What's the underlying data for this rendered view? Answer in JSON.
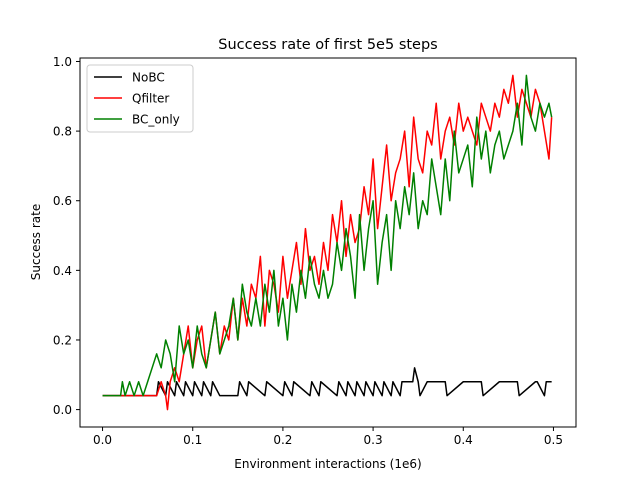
{
  "chart_data": {
    "type": "line",
    "title": "Success rate of first 5e5 steps",
    "xlabel": "Environment interactions (1e6)",
    "ylabel": "Success rate",
    "xlim": [
      -0.025,
      0.525
    ],
    "ylim": [
      -0.05,
      1.01
    ],
    "xticks": [
      0.0,
      0.1,
      0.2,
      0.3,
      0.4,
      0.5
    ],
    "xtick_labels": [
      "0.0",
      "0.1",
      "0.2",
      "0.3",
      "0.4",
      "0.5"
    ],
    "yticks": [
      0.0,
      0.2,
      0.4,
      0.6,
      0.8,
      1.0
    ],
    "ytick_labels": [
      "0.0",
      "0.2",
      "0.4",
      "0.6",
      "0.8",
      "1.0"
    ],
    "grid": false,
    "legend": "upper left",
    "series": [
      {
        "name": "NoBC",
        "color": "#000000",
        "x": [
          0.0,
          0.06,
          0.062,
          0.07,
          0.072,
          0.08,
          0.082,
          0.09,
          0.092,
          0.1,
          0.102,
          0.11,
          0.112,
          0.12,
          0.122,
          0.13,
          0.132,
          0.15,
          0.152,
          0.16,
          0.162,
          0.18,
          0.182,
          0.2,
          0.202,
          0.21,
          0.212,
          0.23,
          0.232,
          0.24,
          0.242,
          0.26,
          0.262,
          0.27,
          0.272,
          0.28,
          0.282,
          0.29,
          0.292,
          0.3,
          0.302,
          0.31,
          0.312,
          0.32,
          0.322,
          0.33,
          0.332,
          0.344,
          0.346,
          0.35,
          0.352,
          0.36,
          0.362,
          0.38,
          0.382,
          0.4,
          0.402,
          0.42,
          0.422,
          0.44,
          0.442,
          0.46,
          0.462,
          0.48,
          0.482,
          0.49,
          0.492,
          0.498
        ],
        "y": [
          0.04,
          0.04,
          0.08,
          0.04,
          0.08,
          0.04,
          0.08,
          0.04,
          0.08,
          0.04,
          0.08,
          0.04,
          0.08,
          0.04,
          0.08,
          0.04,
          0.04,
          0.04,
          0.08,
          0.04,
          0.08,
          0.04,
          0.08,
          0.04,
          0.08,
          0.04,
          0.08,
          0.04,
          0.08,
          0.04,
          0.08,
          0.04,
          0.08,
          0.04,
          0.08,
          0.04,
          0.08,
          0.04,
          0.08,
          0.04,
          0.08,
          0.04,
          0.08,
          0.04,
          0.08,
          0.04,
          0.08,
          0.08,
          0.12,
          0.08,
          0.04,
          0.08,
          0.08,
          0.08,
          0.04,
          0.08,
          0.08,
          0.08,
          0.04,
          0.08,
          0.08,
          0.08,
          0.04,
          0.08,
          0.08,
          0.04,
          0.08,
          0.08
        ]
      },
      {
        "name": "Qfilter",
        "color": "#ff0000",
        "x": [
          0.0,
          0.05,
          0.055,
          0.06,
          0.065,
          0.07,
          0.072,
          0.075,
          0.08,
          0.085,
          0.09,
          0.095,
          0.1,
          0.105,
          0.11,
          0.115,
          0.12,
          0.125,
          0.13,
          0.135,
          0.14,
          0.145,
          0.15,
          0.155,
          0.16,
          0.165,
          0.17,
          0.175,
          0.18,
          0.185,
          0.19,
          0.195,
          0.2,
          0.205,
          0.21,
          0.215,
          0.22,
          0.225,
          0.23,
          0.235,
          0.24,
          0.245,
          0.25,
          0.255,
          0.26,
          0.265,
          0.27,
          0.275,
          0.28,
          0.285,
          0.29,
          0.295,
          0.3,
          0.305,
          0.31,
          0.315,
          0.32,
          0.325,
          0.33,
          0.335,
          0.34,
          0.345,
          0.35,
          0.355,
          0.36,
          0.365,
          0.37,
          0.375,
          0.38,
          0.385,
          0.39,
          0.395,
          0.4,
          0.405,
          0.41,
          0.415,
          0.42,
          0.425,
          0.43,
          0.435,
          0.44,
          0.445,
          0.45,
          0.455,
          0.46,
          0.465,
          0.47,
          0.475,
          0.48,
          0.485,
          0.49,
          0.495,
          0.498
        ],
        "y": [
          0.04,
          0.04,
          0.04,
          0.04,
          0.08,
          0.04,
          0.0,
          0.08,
          0.12,
          0.08,
          0.16,
          0.24,
          0.12,
          0.2,
          0.24,
          0.12,
          0.2,
          0.28,
          0.16,
          0.24,
          0.2,
          0.32,
          0.2,
          0.32,
          0.24,
          0.36,
          0.32,
          0.44,
          0.24,
          0.4,
          0.36,
          0.28,
          0.44,
          0.32,
          0.4,
          0.48,
          0.36,
          0.52,
          0.4,
          0.44,
          0.36,
          0.48,
          0.4,
          0.56,
          0.48,
          0.6,
          0.44,
          0.56,
          0.48,
          0.52,
          0.64,
          0.56,
          0.72,
          0.52,
          0.64,
          0.76,
          0.6,
          0.68,
          0.72,
          0.8,
          0.64,
          0.84,
          0.72,
          0.68,
          0.8,
          0.76,
          0.88,
          0.72,
          0.8,
          0.84,
          0.76,
          0.88,
          0.8,
          0.84,
          0.8,
          0.76,
          0.88,
          0.84,
          0.8,
          0.88,
          0.84,
          0.92,
          0.88,
          0.96,
          0.84,
          0.92,
          0.88,
          0.84,
          0.92,
          0.88,
          0.8,
          0.72,
          0.84
        ]
      },
      {
        "name": "BC_only",
        "color": "#008000",
        "x": [
          0.0,
          0.02,
          0.022,
          0.025,
          0.03,
          0.035,
          0.04,
          0.045,
          0.05,
          0.055,
          0.06,
          0.065,
          0.07,
          0.075,
          0.08,
          0.085,
          0.09,
          0.095,
          0.1,
          0.105,
          0.11,
          0.115,
          0.12,
          0.125,
          0.13,
          0.135,
          0.14,
          0.145,
          0.15,
          0.155,
          0.16,
          0.165,
          0.17,
          0.175,
          0.18,
          0.185,
          0.19,
          0.195,
          0.2,
          0.205,
          0.21,
          0.215,
          0.22,
          0.225,
          0.23,
          0.235,
          0.24,
          0.245,
          0.25,
          0.255,
          0.26,
          0.265,
          0.27,
          0.275,
          0.28,
          0.285,
          0.29,
          0.295,
          0.3,
          0.305,
          0.31,
          0.315,
          0.32,
          0.325,
          0.33,
          0.335,
          0.34,
          0.345,
          0.35,
          0.355,
          0.36,
          0.365,
          0.37,
          0.375,
          0.38,
          0.385,
          0.39,
          0.395,
          0.4,
          0.405,
          0.41,
          0.415,
          0.42,
          0.425,
          0.43,
          0.435,
          0.44,
          0.445,
          0.45,
          0.455,
          0.46,
          0.465,
          0.47,
          0.475,
          0.48,
          0.485,
          0.49,
          0.495,
          0.498
        ],
        "y": [
          0.04,
          0.04,
          0.08,
          0.04,
          0.08,
          0.04,
          0.08,
          0.04,
          0.08,
          0.12,
          0.16,
          0.12,
          0.2,
          0.16,
          0.08,
          0.24,
          0.16,
          0.2,
          0.12,
          0.24,
          0.16,
          0.12,
          0.2,
          0.28,
          0.16,
          0.2,
          0.24,
          0.32,
          0.2,
          0.36,
          0.28,
          0.24,
          0.32,
          0.24,
          0.36,
          0.28,
          0.4,
          0.24,
          0.32,
          0.2,
          0.36,
          0.28,
          0.4,
          0.32,
          0.44,
          0.36,
          0.32,
          0.4,
          0.32,
          0.36,
          0.48,
          0.4,
          0.52,
          0.44,
          0.32,
          0.56,
          0.4,
          0.52,
          0.6,
          0.36,
          0.48,
          0.56,
          0.4,
          0.6,
          0.52,
          0.64,
          0.56,
          0.68,
          0.52,
          0.6,
          0.56,
          0.72,
          0.64,
          0.56,
          0.72,
          0.6,
          0.8,
          0.68,
          0.72,
          0.76,
          0.64,
          0.84,
          0.72,
          0.8,
          0.68,
          0.76,
          0.8,
          0.72,
          0.76,
          0.8,
          0.88,
          0.76,
          0.96,
          0.84,
          0.8,
          0.88,
          0.84,
          0.88,
          0.84
        ]
      }
    ]
  }
}
